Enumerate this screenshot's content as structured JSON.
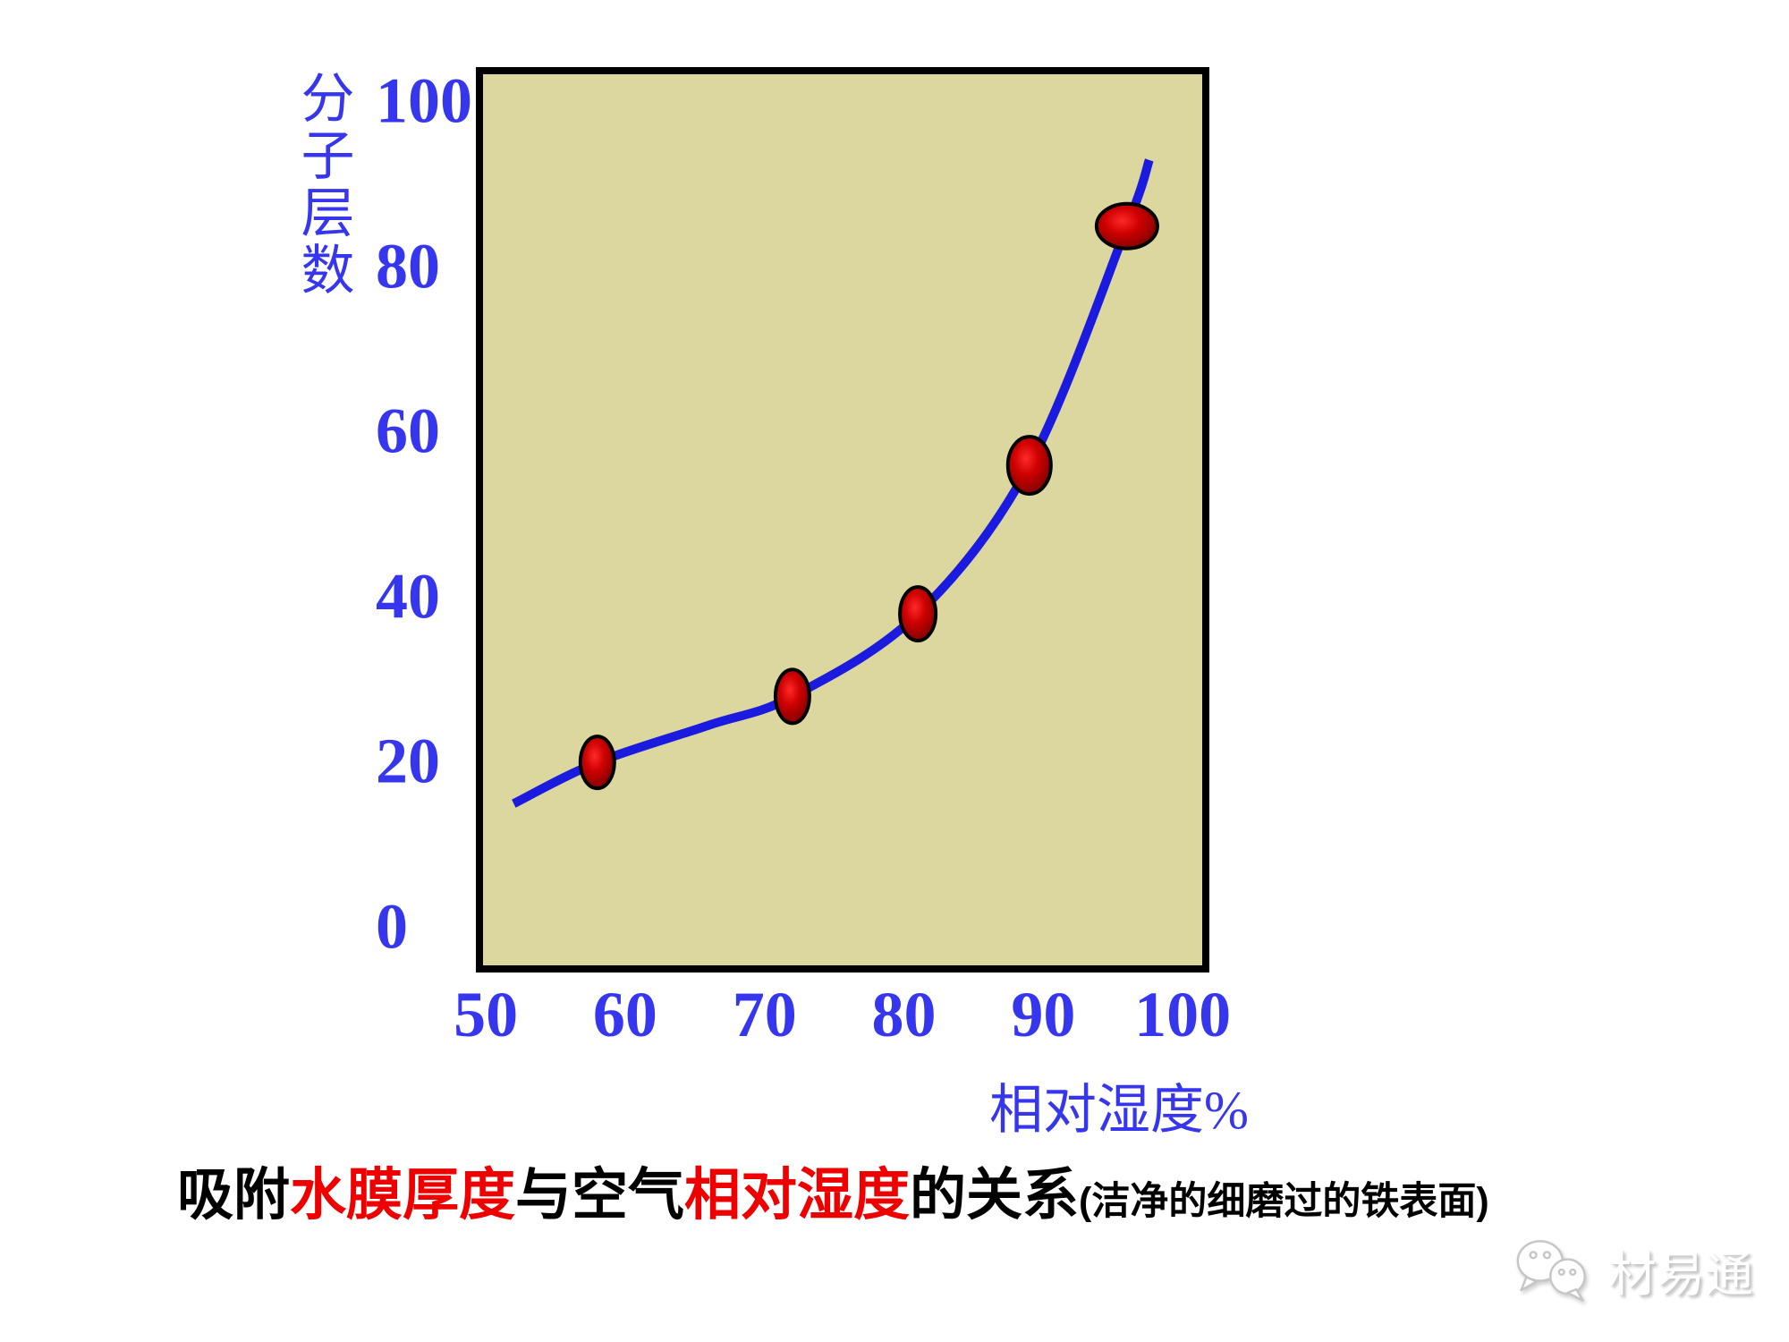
{
  "colors": {
    "axis_text": "#3636ee",
    "curve": "#1b1bdf",
    "plot_bg": "#dbd79e",
    "plot_border": "#000000",
    "marker_highlight": "#ff2a2a",
    "marker_mid": "#cf0000",
    "marker_edge": "#700000",
    "marker_outline": "#000000",
    "title_black": "#000000",
    "title_red": "#ee0000",
    "watermark_text": "#ffffff"
  },
  "chart_data": {
    "type": "line",
    "title": "吸附水膜厚度与空气相对湿度的关系",
    "subtitle": "(洁净的细磨过的铁表面)",
    "xlabel": "相对湿度%",
    "ylabel": "分子层数",
    "x_ticks": [
      50,
      60,
      70,
      80,
      90,
      100
    ],
    "y_ticks": [
      0,
      20,
      40,
      60,
      80,
      100
    ],
    "xlim": [
      49.8,
      101.4
    ],
    "ylim": [
      -4.6,
      103.4
    ],
    "grid": false,
    "legend": false,
    "points": {
      "x": [
        58,
        72,
        81,
        89,
        96
      ],
      "y": [
        20,
        28,
        38,
        56,
        85
      ]
    },
    "curve": {
      "x": [
        52,
        58,
        66,
        72,
        81,
        89,
        96,
        97.6
      ],
      "y": [
        15,
        20,
        24.5,
        28,
        38,
        56,
        85,
        93
      ]
    },
    "marker_rx": [
      19,
      19,
      20,
      24,
      34
    ],
    "marker_ry": [
      29,
      30,
      30,
      32,
      25
    ]
  },
  "caption": {
    "segments": [
      {
        "text": "吸附",
        "color": "#000000"
      },
      {
        "text": "水膜厚度",
        "color": "#ee0000"
      },
      {
        "text": "与空气",
        "color": "#000000"
      },
      {
        "text": "相对湿度",
        "color": "#ee0000"
      },
      {
        "text": "的关系",
        "color": "#000000"
      }
    ],
    "suffix": "(洁净的细磨过的铁表面)"
  },
  "watermark": {
    "text": "材易通",
    "icon": "wechat-chat-bubbles-icon"
  }
}
